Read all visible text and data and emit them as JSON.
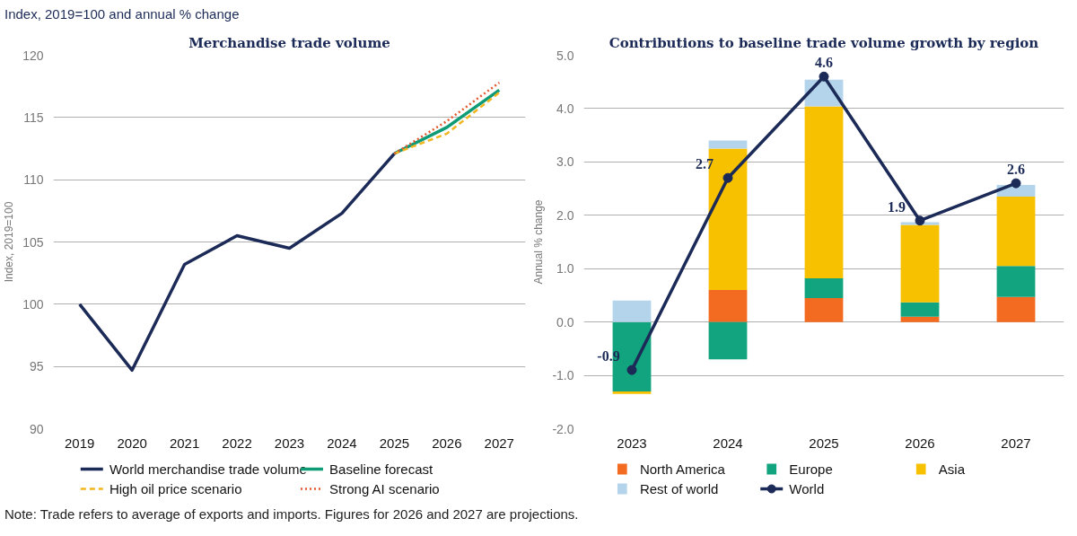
{
  "chart_data": [
    {
      "type": "line",
      "title": "Merchandise trade volume",
      "subtitle": "Index, 2019=100 and annual % change",
      "ylabel": "Index, 2019=100",
      "categories": [
        "2019",
        "2020",
        "2021",
        "2022",
        "2023",
        "2024",
        "2025",
        "2026",
        "2027"
      ],
      "ylim": [
        90,
        120
      ],
      "yticks": [
        90,
        95,
        100,
        105,
        110,
        115,
        120
      ],
      "grid": "y",
      "legend": "bottom",
      "series": [
        {
          "name": "World merchandise trade volume",
          "color": "#1b2a57",
          "line_style": "solid",
          "values": [
            100,
            94.7,
            103.2,
            105.5,
            104.5,
            107.3,
            112.1,
            null,
            null
          ]
        },
        {
          "name": "Baseline forecast",
          "color": "#0f9b76",
          "line_style": "solid",
          "values": [
            null,
            null,
            null,
            null,
            null,
            null,
            112.1,
            114.2,
            117.2
          ]
        },
        {
          "name": "High oil price scenario",
          "color": "#f2b51d",
          "line_style": "dashed",
          "values": [
            null,
            null,
            null,
            null,
            null,
            null,
            112.1,
            113.7,
            117.0
          ]
        },
        {
          "name": "Strong AI scenario",
          "color": "#e4572e",
          "line_style": "dotted",
          "values": [
            null,
            null,
            null,
            null,
            null,
            null,
            112.1,
            114.7,
            117.8
          ]
        }
      ]
    },
    {
      "type": "bar",
      "stacked": true,
      "title": "Contributions to baseline trade volume growth by region",
      "ylabel": "Annual % change",
      "categories": [
        "2023",
        "2024",
        "2025",
        "2026",
        "2027"
      ],
      "ylim": [
        -2,
        5
      ],
      "yticks": [
        {
          "value": -2,
          "label": "-2.0"
        },
        {
          "value": -1,
          "label": "-1.0"
        },
        {
          "value": 0,
          "label": "0.0"
        },
        {
          "value": 1,
          "label": "1.0"
        },
        {
          "value": 2,
          "label": "2.0"
        },
        {
          "value": 3,
          "label": "3.0"
        },
        {
          "value": 4,
          "label": "4.0"
        },
        {
          "value": 5,
          "label": "5.0"
        }
      ],
      "grid": "y",
      "legend": "bottom",
      "annotations": [
        "Note: Trade refers to average of exports and imports. Figures for 2026 and 2027 are projections."
      ],
      "series": [
        {
          "name": "North America",
          "color": "#f26b21",
          "values": [
            0,
            0.6,
            0.45,
            0.1,
            0.47
          ]
        },
        {
          "name": "Europe",
          "color": "#12a37f",
          "values": [
            -1.3,
            -0.7,
            0.37,
            0.27,
            0.58
          ]
        },
        {
          "name": "Asia",
          "color": "#f7c100",
          "values": [
            -0.05,
            2.65,
            3.22,
            1.45,
            1.3
          ]
        },
        {
          "name": "Rest of world",
          "color": "#b3d4ea",
          "values": [
            0.4,
            0.15,
            0.5,
            0.05,
            0.22
          ]
        },
        {
          "name": "World",
          "type": "line",
          "marker": "circle",
          "color": "#1b2a57",
          "values": [
            -0.9,
            2.7,
            4.6,
            1.9,
            2.6
          ],
          "value_labels": [
            "-0.9",
            "2.7",
            "4.6",
            "1.9",
            "2.6"
          ]
        }
      ]
    }
  ]
}
